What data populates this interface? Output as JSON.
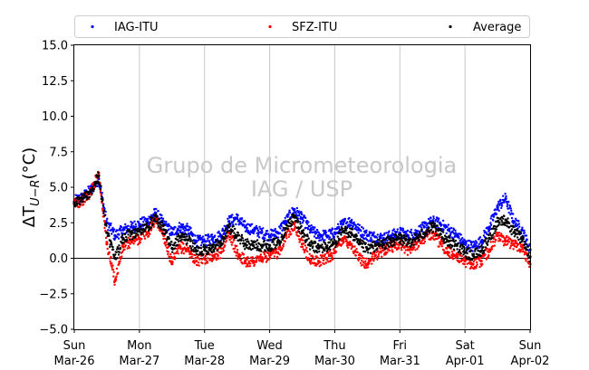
{
  "chart_data": {
    "type": "scatter",
    "title": "",
    "xlabel": "",
    "ylabel": "ΔT",
    "ylabel_subscript": "U−R",
    "ylabel_unit": "(°C)",
    "ylim": [
      -5.0,
      15.0
    ],
    "yticks": [
      -5.0,
      -2.5,
      0.0,
      2.5,
      5.0,
      7.5,
      10.0,
      12.5,
      15.0
    ],
    "ytick_labels": [
      "−5.0",
      "−2.5",
      "0.0",
      "2.5",
      "5.0",
      "7.5",
      "10.0",
      "12.5",
      "15.0"
    ],
    "xlim": [
      "2017-03-26T00:00",
      "2017-04-02T00:00"
    ],
    "xticks": [
      {
        "day": "Sun",
        "date": "Mar-26"
      },
      {
        "day": "Mon",
        "date": "Mar-27"
      },
      {
        "day": "Tue",
        "date": "Mar-28"
      },
      {
        "day": "Wed",
        "date": "Mar-29"
      },
      {
        "day": "Thu",
        "date": "Mar-30"
      },
      {
        "day": "Fri",
        "date": "Mar-31"
      },
      {
        "day": "Sat",
        "date": "Apr-01"
      },
      {
        "day": "Sun",
        "date": "Apr-02"
      }
    ],
    "grid": "vertical",
    "reference_line_y": 0.0,
    "legend_placement": "top",
    "watermark": [
      "Grupo de Micrometeorologia",
      "IAG / USP"
    ],
    "series": [
      {
        "name": "IAG-ITU",
        "color": "#0000ff",
        "x": [
          "2017-03-26T00:00",
          "2017-03-26T03:00",
          "2017-03-26T06:00",
          "2017-03-26T09:00",
          "2017-03-26T12:00",
          "2017-03-26T15:00",
          "2017-03-26T18:00",
          "2017-03-26T21:00",
          "2017-03-27T00:00",
          "2017-03-27T03:00",
          "2017-03-27T06:00",
          "2017-03-27T09:00",
          "2017-03-27T12:00",
          "2017-03-27T15:00",
          "2017-03-27T18:00",
          "2017-03-27T21:00",
          "2017-03-28T00:00",
          "2017-03-28T03:00",
          "2017-03-28T06:00",
          "2017-03-28T09:00",
          "2017-03-28T12:00",
          "2017-03-28T15:00",
          "2017-03-28T18:00",
          "2017-03-28T21:00",
          "2017-03-29T00:00",
          "2017-03-29T03:00",
          "2017-03-29T06:00",
          "2017-03-29T09:00",
          "2017-03-29T12:00",
          "2017-03-29T15:00",
          "2017-03-29T18:00",
          "2017-03-29T21:00",
          "2017-03-30T00:00",
          "2017-03-30T03:00",
          "2017-03-30T06:00",
          "2017-03-30T09:00",
          "2017-03-30T12:00",
          "2017-03-30T15:00",
          "2017-03-30T18:00",
          "2017-03-30T21:00",
          "2017-03-31T00:00",
          "2017-03-31T03:00",
          "2017-03-31T06:00",
          "2017-03-31T09:00",
          "2017-03-31T12:00",
          "2017-03-31T15:00",
          "2017-03-31T18:00",
          "2017-03-31T21:00",
          "2017-04-01T00:00",
          "2017-04-01T03:00",
          "2017-04-01T06:00",
          "2017-04-01T09:00",
          "2017-04-01T12:00",
          "2017-04-01T15:00",
          "2017-04-01T18:00",
          "2017-04-01T21:00",
          "2017-04-02T00:00"
        ],
        "y": [
          4.0,
          4.3,
          4.8,
          5.6,
          2.5,
          1.6,
          2.0,
          2.2,
          2.4,
          2.6,
          3.2,
          2.4,
          1.8,
          2.2,
          2.0,
          1.2,
          1.2,
          1.4,
          1.6,
          2.6,
          2.8,
          2.2,
          2.0,
          1.8,
          1.6,
          1.8,
          2.6,
          3.4,
          2.8,
          2.0,
          1.6,
          1.6,
          1.8,
          2.4,
          2.6,
          2.0,
          1.6,
          1.5,
          1.4,
          1.6,
          1.8,
          1.6,
          1.8,
          2.2,
          2.6,
          2.4,
          2.0,
          1.6,
          1.0,
          0.8,
          1.2,
          2.2,
          3.6,
          4.2,
          2.6,
          2.0,
          0.6
        ]
      },
      {
        "name": "SFZ-ITU",
        "color": "#ff0000",
        "x": [
          "2017-03-26T00:00",
          "2017-03-26T03:00",
          "2017-03-26T06:00",
          "2017-03-26T09:00",
          "2017-03-26T12:00",
          "2017-03-26T15:00",
          "2017-03-26T18:00",
          "2017-03-26T21:00",
          "2017-03-27T00:00",
          "2017-03-27T03:00",
          "2017-03-27T06:00",
          "2017-03-27T09:00",
          "2017-03-27T12:00",
          "2017-03-27T15:00",
          "2017-03-27T18:00",
          "2017-03-27T21:00",
          "2017-03-28T00:00",
          "2017-03-28T03:00",
          "2017-03-28T06:00",
          "2017-03-28T09:00",
          "2017-03-28T12:00",
          "2017-03-28T15:00",
          "2017-03-28T18:00",
          "2017-03-28T21:00",
          "2017-03-29T00:00",
          "2017-03-29T03:00",
          "2017-03-29T06:00",
          "2017-03-29T09:00",
          "2017-03-29T12:00",
          "2017-03-29T15:00",
          "2017-03-29T18:00",
          "2017-03-29T21:00",
          "2017-03-30T00:00",
          "2017-03-30T03:00",
          "2017-03-30T06:00",
          "2017-03-30T09:00",
          "2017-03-30T12:00",
          "2017-03-30T15:00",
          "2017-03-30T18:00",
          "2017-03-30T21:00",
          "2017-03-31T00:00",
          "2017-03-31T03:00",
          "2017-03-31T06:00",
          "2017-03-31T09:00",
          "2017-03-31T12:00",
          "2017-03-31T15:00",
          "2017-03-31T18:00",
          "2017-03-31T21:00",
          "2017-04-01T00:00",
          "2017-04-01T03:00",
          "2017-04-01T06:00",
          "2017-04-01T09:00",
          "2017-04-01T12:00",
          "2017-04-01T15:00",
          "2017-04-01T18:00",
          "2017-04-01T21:00",
          "2017-04-02T00:00"
        ],
        "y": [
          3.8,
          4.1,
          4.6,
          6.0,
          1.0,
          -1.6,
          0.8,
          1.2,
          1.4,
          1.8,
          2.8,
          1.6,
          -0.4,
          0.8,
          0.6,
          -0.2,
          0.0,
          0.2,
          0.4,
          1.8,
          0.4,
          -0.2,
          -0.2,
          0.0,
          0.2,
          0.4,
          1.6,
          2.4,
          1.0,
          -0.2,
          -0.2,
          0.0,
          0.4,
          1.4,
          1.0,
          0.0,
          -0.4,
          0.2,
          0.6,
          0.8,
          1.0,
          0.6,
          1.0,
          1.4,
          1.8,
          1.0,
          0.4,
          0.2,
          -0.2,
          -0.4,
          -0.2,
          0.6,
          1.6,
          1.2,
          1.0,
          0.8,
          -0.4
        ]
      },
      {
        "name": "Average",
        "color": "#000000",
        "x": [
          "2017-03-26T00:00",
          "2017-03-26T03:00",
          "2017-03-26T06:00",
          "2017-03-26T09:00",
          "2017-03-26T12:00",
          "2017-03-26T15:00",
          "2017-03-26T18:00",
          "2017-03-26T21:00",
          "2017-03-27T00:00",
          "2017-03-27T03:00",
          "2017-03-27T06:00",
          "2017-03-27T09:00",
          "2017-03-27T12:00",
          "2017-03-27T15:00",
          "2017-03-27T18:00",
          "2017-03-27T21:00",
          "2017-03-28T00:00",
          "2017-03-28T03:00",
          "2017-03-28T06:00",
          "2017-03-28T09:00",
          "2017-03-28T12:00",
          "2017-03-28T15:00",
          "2017-03-28T18:00",
          "2017-03-28T21:00",
          "2017-03-29T00:00",
          "2017-03-29T03:00",
          "2017-03-29T06:00",
          "2017-03-29T09:00",
          "2017-03-29T12:00",
          "2017-03-29T15:00",
          "2017-03-29T18:00",
          "2017-03-29T21:00",
          "2017-03-30T00:00",
          "2017-03-30T03:00",
          "2017-03-30T06:00",
          "2017-03-30T09:00",
          "2017-03-30T12:00",
          "2017-03-30T15:00",
          "2017-03-30T18:00",
          "2017-03-30T21:00",
          "2017-03-31T00:00",
          "2017-03-31T03:00",
          "2017-03-31T06:00",
          "2017-03-31T09:00",
          "2017-03-31T12:00",
          "2017-03-31T15:00",
          "2017-03-31T18:00",
          "2017-03-31T21:00",
          "2017-04-01T00:00",
          "2017-04-01T03:00",
          "2017-04-01T06:00",
          "2017-04-01T09:00",
          "2017-04-01T12:00",
          "2017-04-01T15:00",
          "2017-04-01T18:00",
          "2017-04-01T21:00",
          "2017-04-02T00:00"
        ],
        "y": [
          3.9,
          4.2,
          4.7,
          5.8,
          1.8,
          0.0,
          1.4,
          1.7,
          1.9,
          2.2,
          3.0,
          2.0,
          0.7,
          1.5,
          1.3,
          0.5,
          0.6,
          0.8,
          1.0,
          2.2,
          1.6,
          1.0,
          0.9,
          0.9,
          0.9,
          1.1,
          2.1,
          2.9,
          1.9,
          0.9,
          0.7,
          0.8,
          1.1,
          1.9,
          1.8,
          1.0,
          0.6,
          0.9,
          1.0,
          1.2,
          1.4,
          1.1,
          1.4,
          1.8,
          2.2,
          1.7,
          1.2,
          0.9,
          0.4,
          0.2,
          0.5,
          1.4,
          2.6,
          2.7,
          1.8,
          1.4,
          0.1
        ]
      }
    ]
  }
}
